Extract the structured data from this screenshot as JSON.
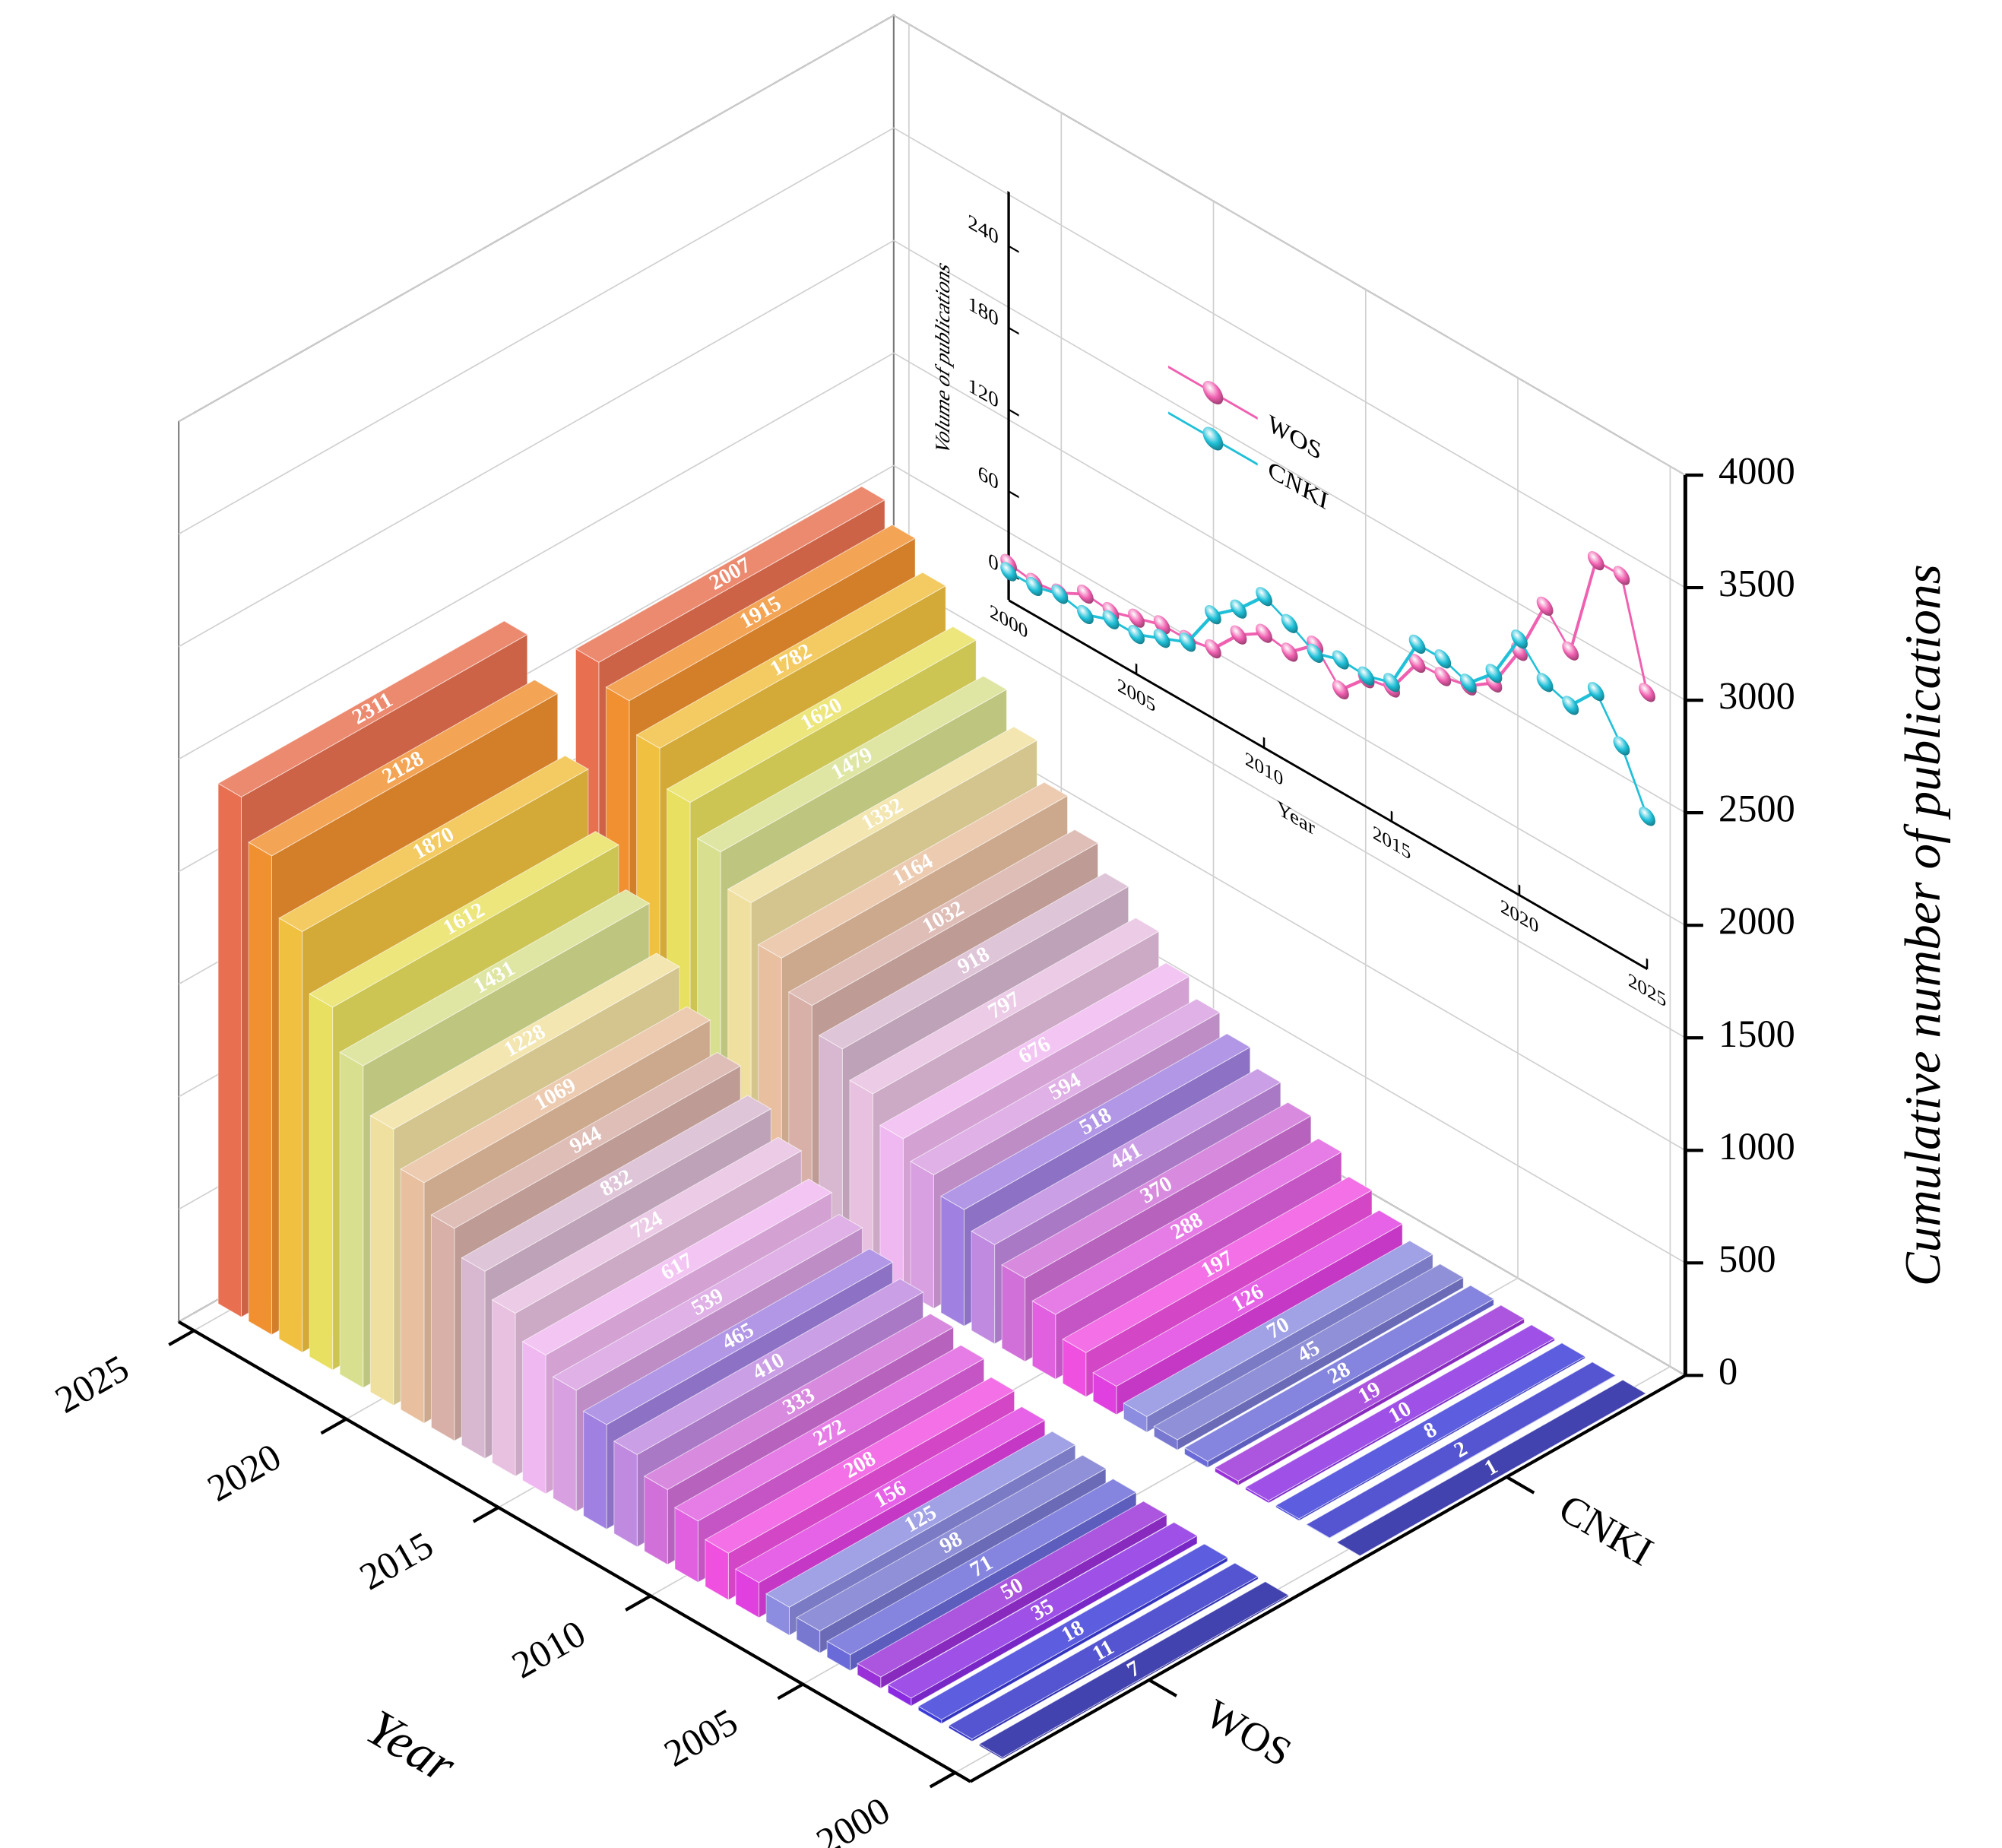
{
  "chart_data": [
    {
      "type": "bar3d",
      "x": [
        2000,
        2001,
        2002,
        2003,
        2004,
        2005,
        2006,
        2007,
        2008,
        2009,
        2010,
        2011,
        2012,
        2013,
        2014,
        2015,
        2016,
        2017,
        2018,
        2019,
        2020,
        2021,
        2022,
        2023,
        2024,
        2025
      ],
      "series": [
        {
          "name": "WOS",
          "values": [
            7,
            11,
            18,
            35,
            50,
            71,
            98,
            125,
            156,
            208,
            272,
            333,
            410,
            465,
            539,
            617,
            724,
            832,
            944,
            1069,
            1228,
            1431,
            1612,
            1870,
            2128,
            2311
          ]
        },
        {
          "name": "CNKI",
          "values": [
            1,
            2,
            8,
            10,
            19,
            28,
            45,
            70,
            126,
            197,
            288,
            370,
            441,
            518,
            594,
            676,
            797,
            918,
            1032,
            1164,
            1332,
            1479,
            1620,
            1782,
            1915,
            2007
          ]
        }
      ],
      "bar_colors": [
        "#1a1a9e",
        "#3030c8",
        "#3a3ad8",
        "#8a2be2",
        "#9a30d8",
        "#6a6ad8",
        "#7878d0",
        "#8c8ce0",
        "#e040e0",
        "#f050e0",
        "#e060e0",
        "#d070d8",
        "#c08ae0",
        "#a080e0",
        "#d8a0e0",
        "#f0b8f0",
        "#e8c0e0",
        "#d8b8d0",
        "#d8b0a8",
        "#e8c0a0",
        "#f0e0a0",
        "#d8e090",
        "#e8e060",
        "#f0c040",
        "#f09030",
        "#e87050"
      ],
      "xlim": [
        1999.5,
        2025.5
      ],
      "xticks": [
        2000,
        2005,
        2010,
        2015,
        2020,
        2025
      ],
      "zlim": [
        0,
        4000
      ],
      "zticks": [
        0,
        500,
        1000,
        1500,
        2000,
        2500,
        3000,
        3500,
        4000
      ],
      "xlabel": "Year",
      "zlabel": "Cumulative number of publications",
      "grid": true
    },
    {
      "type": "line",
      "x": [
        2000,
        2001,
        2002,
        2003,
        2004,
        2005,
        2006,
        2007,
        2008,
        2009,
        2010,
        2011,
        2012,
        2013,
        2014,
        2015,
        2016,
        2017,
        2018,
        2019,
        2020,
        2021,
        2022,
        2023,
        2024,
        2025
      ],
      "series": [
        {
          "name": "WOS",
          "color": "#f060b0",
          "values": [
            7,
            4,
            7,
            17,
            15,
            21,
            27,
            27,
            31,
            52,
            64,
            61,
            77,
            55,
            74,
            78,
            107,
            108,
            112,
            125,
            159,
            203,
            181,
            258,
            258,
            183
          ]
        },
        {
          "name": "CNKI",
          "color": "#20c0d8",
          "values": [
            1,
            1,
            6,
            2,
            9,
            9,
            17,
            25,
            56,
            71,
            91,
            82,
            71,
            77,
            76,
            82,
            121,
            121,
            114,
            132,
            168,
            147,
            141,
            162,
            133,
            92
          ]
        }
      ],
      "xlim": [
        2000,
        2025
      ],
      "ylim": [
        -20,
        280
      ],
      "xticks": [
        2000,
        2005,
        2010,
        2015,
        2020,
        2025
      ],
      "yticks": [
        0,
        60,
        120,
        180,
        240
      ],
      "xlabel": "Year",
      "ylabel": "Volume of publications"
    }
  ]
}
